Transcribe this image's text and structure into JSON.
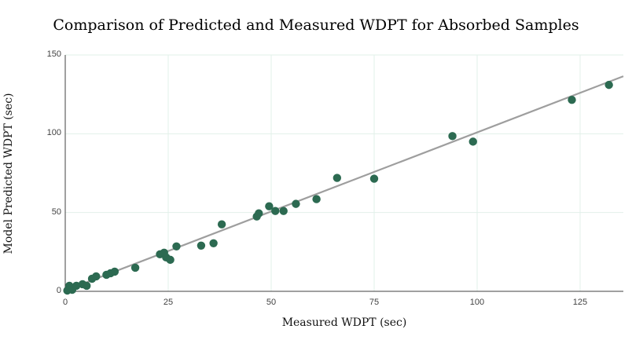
{
  "chart_data": {
    "type": "scatter",
    "title": "Comparison of Predicted and Measured WDPT for Absorbed Samples",
    "xlabel": "Measured WDPT (sec)",
    "ylabel": "Model Predicted WDPT (sec)",
    "xlim": [
      0,
      135.5
    ],
    "ylim": [
      0,
      150
    ],
    "x_ticks": [
      0,
      25,
      50,
      75,
      100,
      125
    ],
    "y_ticks": [
      0,
      50,
      100,
      150
    ],
    "grid": true,
    "legend": false,
    "point_color": "#2c6a51",
    "trendline_color": "#9e9e9e",
    "gridline_color": "#e2f0ea",
    "axis_color": "#424242",
    "trendline": {
      "x1": 0,
      "y1": 0.5,
      "x2": 135.5,
      "y2": 136.5
    },
    "points": [
      [
        0.5,
        0.5
      ],
      [
        1,
        3.5
      ],
      [
        1.7,
        1
      ],
      [
        2.7,
        3.5
      ],
      [
        4.2,
        4.5
      ],
      [
        5.2,
        3.5
      ],
      [
        6.5,
        8
      ],
      [
        7.5,
        9.5
      ],
      [
        10,
        10.5
      ],
      [
        11,
        11.5
      ],
      [
        12,
        12.5
      ],
      [
        17,
        15
      ],
      [
        23,
        23.5
      ],
      [
        24,
        24.5
      ],
      [
        24.5,
        21.5
      ],
      [
        25.5,
        20
      ],
      [
        27,
        28.5
      ],
      [
        33,
        29
      ],
      [
        36,
        30.5
      ],
      [
        38,
        42.5
      ],
      [
        46.5,
        47.5
      ],
      [
        47,
        49.5
      ],
      [
        49.5,
        54
      ],
      [
        51,
        51
      ],
      [
        53,
        51
      ],
      [
        56,
        55.5
      ],
      [
        61,
        58.5
      ],
      [
        66,
        72
      ],
      [
        75,
        71.5
      ],
      [
        94,
        98.5
      ],
      [
        99,
        95
      ],
      [
        123,
        121.5
      ],
      [
        132,
        131
      ]
    ]
  }
}
